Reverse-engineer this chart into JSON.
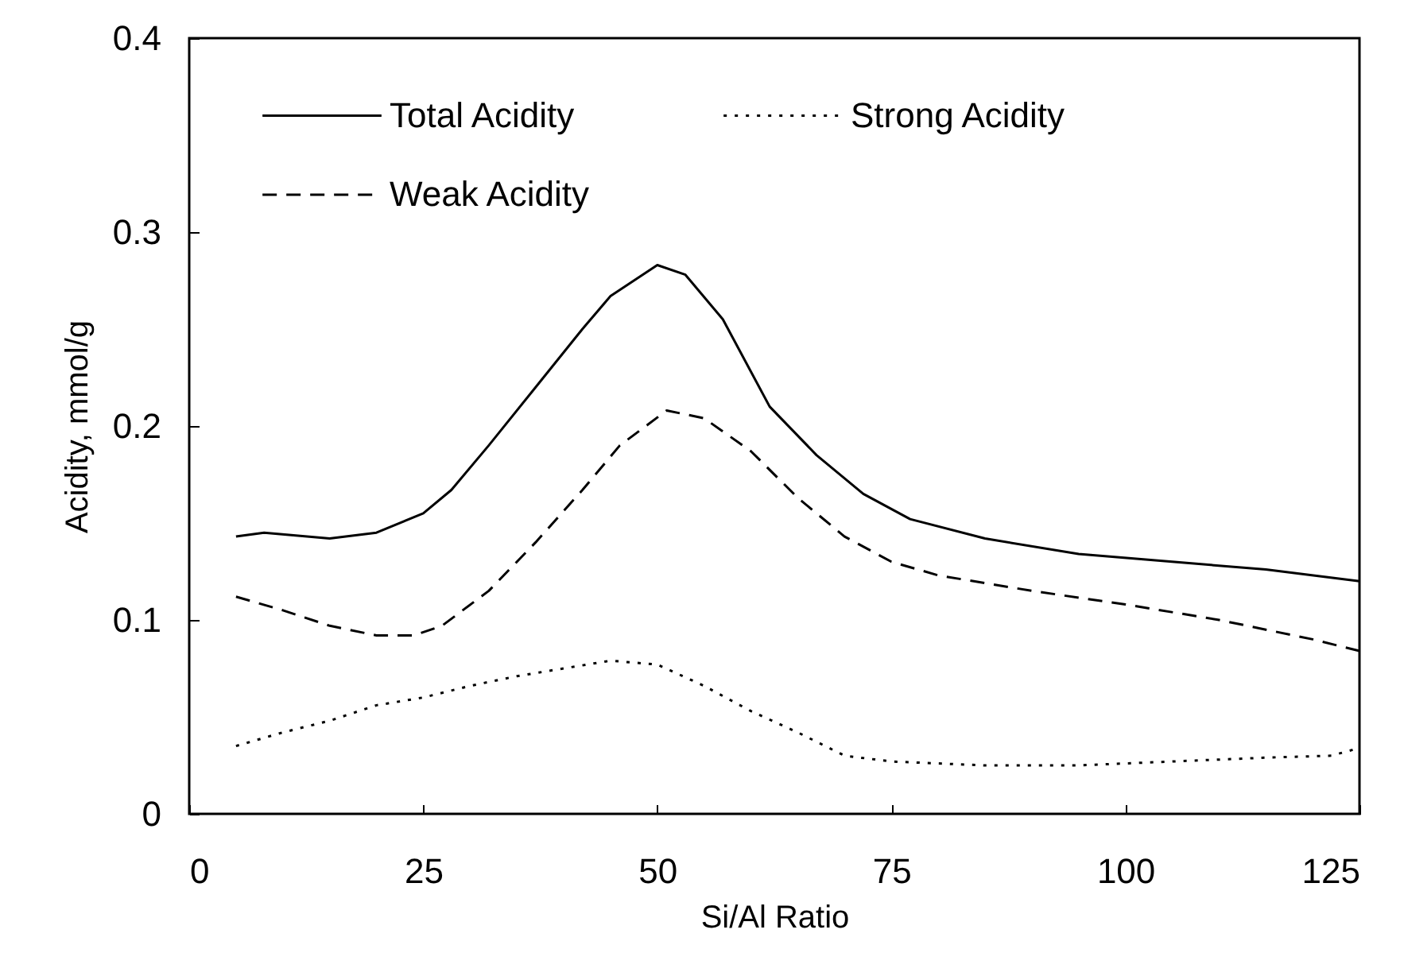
{
  "chart_data": {
    "type": "line",
    "xlabel": "Si/Al Ratio",
    "ylabel": "Acidity, mmol/g",
    "xlim": [
      0,
      125
    ],
    "xticks": [
      0,
      25,
      50,
      75,
      100,
      125
    ],
    "ylim": [
      0,
      0.4
    ],
    "yticks": [
      0,
      0.1,
      0.2,
      0.3,
      0.4
    ],
    "grid": false,
    "legend": "top",
    "marker": "none",
    "series": [
      {
        "name": "Total Acidity",
        "color": "#000000",
        "line_style": "solid",
        "x": [
          5,
          8,
          15,
          20,
          25,
          28,
          32,
          37,
          42,
          45,
          50,
          53,
          57,
          62,
          67,
          72,
          77,
          85,
          95,
          105,
          115,
          125
        ],
        "values": [
          0.143,
          0.145,
          0.142,
          0.145,
          0.155,
          0.167,
          0.19,
          0.22,
          0.25,
          0.267,
          0.283,
          0.278,
          0.255,
          0.21,
          0.185,
          0.165,
          0.152,
          0.142,
          0.134,
          0.13,
          0.126,
          0.12
        ]
      },
      {
        "name": "Strong Acidity",
        "color": "#000000",
        "line_style": "dotted",
        "x": [
          5,
          10,
          15,
          20,
          25,
          30,
          35,
          40,
          45,
          50,
          55,
          60,
          65,
          70,
          75,
          85,
          95,
          105,
          115,
          122,
          125
        ],
        "values": [
          0.035,
          0.042,
          0.048,
          0.056,
          0.06,
          0.066,
          0.071,
          0.075,
          0.079,
          0.077,
          0.066,
          0.053,
          0.042,
          0.03,
          0.027,
          0.025,
          0.025,
          0.027,
          0.029,
          0.03,
          0.034
        ]
      },
      {
        "name": "Weak Acidity",
        "color": "#000000",
        "line_style": "dashed",
        "x": [
          5,
          10,
          15,
          20,
          24,
          27,
          32,
          37,
          42,
          46,
          51,
          55,
          60,
          65,
          70,
          75,
          80,
          90,
          100,
          110,
          120,
          125
        ],
        "values": [
          0.112,
          0.105,
          0.097,
          0.092,
          0.092,
          0.097,
          0.115,
          0.14,
          0.167,
          0.19,
          0.208,
          0.204,
          0.187,
          0.163,
          0.143,
          0.13,
          0.123,
          0.115,
          0.108,
          0.1,
          0.09,
          0.084
        ]
      }
    ]
  }
}
